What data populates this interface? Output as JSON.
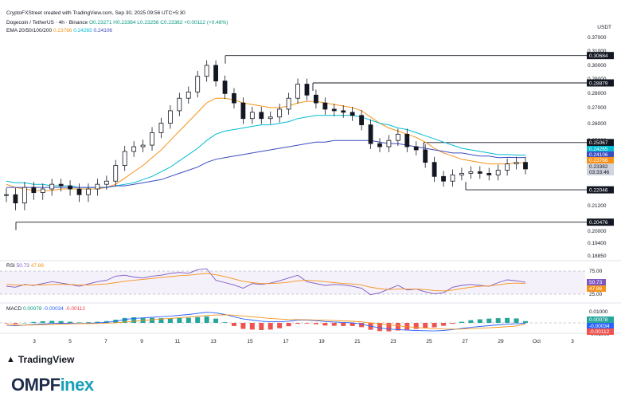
{
  "header": {
    "credit": "CryptoFXStreet created with TradingView.com, Sep 30, 2025 09:56 UTC+5:30",
    "symbol": "Dogecoin / TetherUS · 4h · Binance",
    "ohlc": "O0.23271 H0.23384 L0.23256 C0.23382 +0.00112 (+0.48%)",
    "ema_label": "EMA 20/50/100/200",
    "ema_values": [
      "0.23766",
      "0.24265",
      "0.24106"
    ],
    "unit": "USDT"
  },
  "indicators": {
    "rsi_label": "RSI",
    "rsi_values": [
      "50.73",
      "47.86"
    ],
    "macd_label": "MACD",
    "macd_values": [
      "0.00078",
      "-0.00034",
      "-0.00112"
    ]
  },
  "chart_data": [
    {
      "type": "line",
      "title": "Dogecoin / TetherUS · 4h · Binance",
      "x_ticks": [
        "3",
        "5",
        "7",
        "9",
        "11",
        "13",
        "15",
        "17",
        "19",
        "21",
        "23",
        "25",
        "27",
        "29",
        "Oct",
        "3"
      ],
      "y_ticks": [
        0.37,
        0.31,
        0.3,
        0.29,
        0.28,
        0.27,
        0.26,
        0.25,
        0.24,
        0.23,
        0.22,
        0.212,
        0.2,
        0.194,
        0.1885
      ],
      "y_tick_labels": [
        "0.37000",
        "0.31000",
        "0.30000",
        "0.29000",
        "0.28000",
        "0.27000",
        "0.26000",
        "0.25000",
        "0.24000",
        "0.23000",
        "0.22000",
        "0.21200",
        "0.20000",
        "0.19400",
        "0.18850"
      ],
      "ylim": [
        0.1885,
        0.37
      ],
      "series": [
        {
          "name": "Dogecoin / TetherUS",
          "color": "#131722",
          "values": [
            0.218,
            0.214,
            0.222,
            0.219,
            0.221,
            0.224,
            0.223,
            0.221,
            0.218,
            0.221,
            0.224,
            0.226,
            0.236,
            0.245,
            0.248,
            0.249,
            0.257,
            0.263,
            0.271,
            0.279,
            0.283,
            0.293,
            0.3,
            0.29,
            0.282,
            0.276,
            0.266,
            0.27,
            0.266,
            0.267,
            0.272,
            0.279,
            0.288,
            0.281,
            0.276,
            0.272,
            0.271,
            0.27,
            0.268,
            0.262,
            0.25,
            0.248,
            0.252,
            0.256,
            0.248,
            0.246,
            0.238,
            0.229,
            0.226,
            0.23,
            0.231,
            0.232,
            0.231,
            0.23,
            0.233,
            0.237,
            0.238,
            0.2338
          ]
        },
        {
          "name": "EMA 20",
          "color": "#f7931a",
          "values": [
            0.224,
            0.222,
            0.221,
            0.22,
            0.22,
            0.22,
            0.221,
            0.221,
            0.221,
            0.221,
            0.221,
            0.222,
            0.224,
            0.228,
            0.232,
            0.236,
            0.241,
            0.246,
            0.252,
            0.258,
            0.264,
            0.27,
            0.276,
            0.279,
            0.279,
            0.278,
            0.276,
            0.275,
            0.274,
            0.273,
            0.273,
            0.274,
            0.276,
            0.277,
            0.277,
            0.276,
            0.275,
            0.274,
            0.273,
            0.271,
            0.267,
            0.263,
            0.26,
            0.258,
            0.256,
            0.254,
            0.251,
            0.247,
            0.244,
            0.242,
            0.24,
            0.239,
            0.238,
            0.237,
            0.237,
            0.237,
            0.2377,
            0.2377
          ]
        },
        {
          "name": "EMA 50",
          "color": "#00bcd4",
          "values": [
            0.226,
            0.225,
            0.225,
            0.224,
            0.224,
            0.223,
            0.223,
            0.223,
            0.222,
            0.222,
            0.222,
            0.222,
            0.223,
            0.224,
            0.225,
            0.227,
            0.229,
            0.232,
            0.235,
            0.239,
            0.243,
            0.247,
            0.252,
            0.256,
            0.258,
            0.259,
            0.26,
            0.261,
            0.262,
            0.262,
            0.263,
            0.264,
            0.266,
            0.267,
            0.268,
            0.268,
            0.268,
            0.268,
            0.268,
            0.267,
            0.265,
            0.263,
            0.262,
            0.26,
            0.259,
            0.257,
            0.255,
            0.253,
            0.251,
            0.249,
            0.247,
            0.246,
            0.245,
            0.244,
            0.243,
            0.243,
            0.2427,
            0.2427
          ]
        },
        {
          "name": "EMA 100",
          "color": "#3b4cc0",
          "values": [
            0.222,
            0.222,
            0.222,
            0.222,
            0.222,
            0.222,
            0.222,
            0.222,
            0.222,
            0.222,
            0.222,
            0.222,
            0.223,
            0.223,
            0.224,
            0.225,
            0.226,
            0.227,
            0.229,
            0.231,
            0.233,
            0.235,
            0.238,
            0.24,
            0.241,
            0.242,
            0.243,
            0.244,
            0.245,
            0.246,
            0.247,
            0.248,
            0.249,
            0.25,
            0.251,
            0.251,
            0.252,
            0.252,
            0.252,
            0.252,
            0.252,
            0.251,
            0.25,
            0.25,
            0.249,
            0.248,
            0.247,
            0.246,
            0.245,
            0.244,
            0.244,
            0.243,
            0.242,
            0.242,
            0.241,
            0.2412,
            0.2411,
            0.2411
          ]
        }
      ],
      "levels": [
        {
          "label": "0.30684",
          "value": 0.30684
        },
        {
          "label": "0.28879",
          "value": 0.28879
        },
        {
          "label": "0.25067",
          "value": 0.25067
        },
        {
          "label": "0.22046",
          "value": 0.22046
        },
        {
          "label": "0.20476",
          "value": 0.20476
        }
      ],
      "price_tags": [
        {
          "label": "0.24265",
          "value": 0.24265,
          "color": "#00bcd4"
        },
        {
          "label": "0.24106",
          "value": 0.24106,
          "color": "#3b4cc0"
        },
        {
          "label": "0.23766",
          "value": 0.23766,
          "color": "#f7931a"
        },
        {
          "label": "0.23382",
          "value": 0.23382,
          "color": "#d1d4dc"
        },
        {
          "label": "03:33:46",
          "value": 0.2318,
          "color": "#d1d4dc"
        }
      ]
    },
    {
      "type": "line",
      "title": "RSI",
      "y_ticks": [
        75,
        25
      ],
      "y_tick_labels": [
        "75.00",
        "25.00"
      ],
      "ylim": [
        10,
        90
      ],
      "series": [
        {
          "name": "RSI",
          "color": "#7e57c2",
          "values": [
            42,
            40,
            46,
            44,
            48,
            52,
            49,
            46,
            42,
            47,
            52,
            55,
            64,
            66,
            62,
            60,
            64,
            66,
            70,
            72,
            70,
            78,
            80,
            55,
            50,
            45,
            38,
            48,
            46,
            49,
            54,
            60,
            66,
            52,
            48,
            44,
            46,
            45,
            42,
            38,
            24,
            28,
            36,
            44,
            34,
            36,
            30,
            26,
            28,
            40,
            44,
            46,
            44,
            42,
            50,
            56,
            54,
            50.73
          ]
        },
        {
          "name": "RSI MA",
          "color": "#f7931a",
          "values": [
            46,
            45,
            45,
            45,
            45,
            46,
            46,
            46,
            45,
            45,
            46,
            47,
            50,
            53,
            55,
            57,
            59,
            61,
            63,
            65,
            66,
            68,
            70,
            67,
            63,
            58,
            53,
            50,
            48,
            48,
            49,
            51,
            54,
            55,
            54,
            52,
            50,
            48,
            47,
            45,
            40,
            37,
            35,
            36,
            36,
            36,
            35,
            33,
            32,
            34,
            37,
            40,
            42,
            43,
            45,
            48,
            49,
            47.86
          ]
        }
      ]
    },
    {
      "type": "bar",
      "title": "MACD",
      "y_ticks": [
        0.01,
        0,
        -0.01
      ],
      "y_tick_labels": [
        "0.01000",
        "0.00000",
        "-0.01000"
      ],
      "ylim": [
        -0.012,
        0.012
      ],
      "series": [
        {
          "name": "MACD",
          "color": "#2962ff",
          "values": [
            -0.002,
            -0.0025,
            -0.002,
            -0.0015,
            -0.001,
            -0.0005,
            -0.0003,
            -0.0004,
            -0.0006,
            -0.0004,
            0.0,
            0.0005,
            0.0015,
            0.003,
            0.004,
            0.0045,
            0.005,
            0.0055,
            0.006,
            0.0068,
            0.0075,
            0.0085,
            0.0095,
            0.009,
            0.0075,
            0.0055,
            0.0035,
            0.0025,
            0.0015,
            0.001,
            0.001,
            0.0015,
            0.0025,
            0.0025,
            0.002,
            0.0012,
            0.0008,
            0.0004,
            0.0,
            -0.001,
            -0.003,
            -0.0045,
            -0.0055,
            -0.006,
            -0.0065,
            -0.0068,
            -0.007,
            -0.0072,
            -0.0068,
            -0.006,
            -0.005,
            -0.004,
            -0.0032,
            -0.0025,
            -0.0018,
            -0.0012,
            -0.0008,
            -0.00034
          ]
        },
        {
          "name": "Signal",
          "color": "#f7931a",
          "values": [
            -0.0018,
            -0.002,
            -0.002,
            -0.0019,
            -0.0017,
            -0.0014,
            -0.0011,
            -0.0009,
            -0.0008,
            -0.0007,
            -0.0005,
            -0.0003,
            0.0001,
            0.0008,
            0.0015,
            0.0022,
            0.0028,
            0.0034,
            0.004,
            0.0046,
            0.0052,
            0.0059,
            0.0066,
            0.0071,
            0.0072,
            0.0069,
            0.0062,
            0.0055,
            0.0047,
            0.004,
            0.0034,
            0.003,
            0.0029,
            0.0028,
            0.0026,
            0.0024,
            0.0021,
            0.0018,
            0.0014,
            0.0009,
            0.0001,
            -0.0008,
            -0.0017,
            -0.0026,
            -0.0034,
            -0.0041,
            -0.0047,
            -0.0052,
            -0.0055,
            -0.0056,
            -0.0055,
            -0.0052,
            -0.0048,
            -0.0044,
            -0.0039,
            -0.0034,
            -0.0028,
            -0.00112
          ]
        }
      ]
    }
  ],
  "footer": {
    "tradingview": "TradingView",
    "brand_a": "OMPF",
    "brand_b": "inex"
  }
}
